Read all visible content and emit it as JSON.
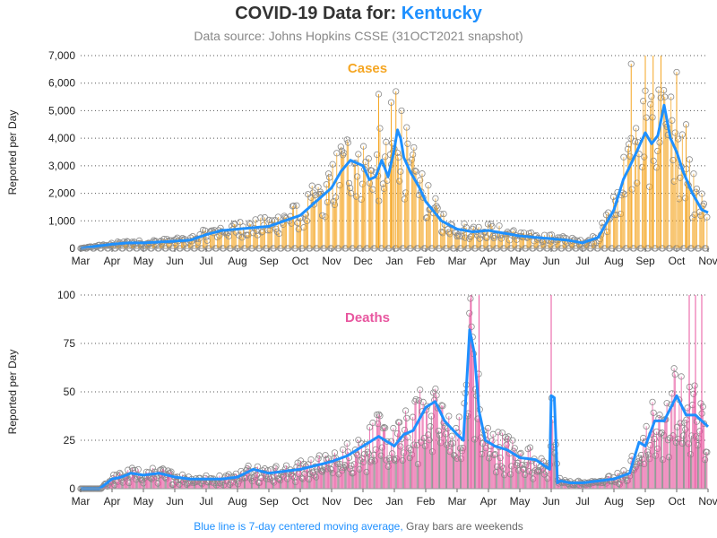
{
  "title_prefix": "COVID-19 Data for:",
  "title_state": "Kentucky",
  "subtitle": "Data source: Johns Hopkins CSSE (31OCT2021 snapshot)",
  "footer_blue": "Blue line is 7-day centered moving average,",
  "footer_gray": "Gray bars are weekends",
  "colors": {
    "cases": "#f5a623",
    "deaths": "#e8569f",
    "average": "#1e90ff",
    "weekend": "#777777",
    "marker": "#8a8a8a"
  },
  "chart_data": [
    {
      "type": "bar",
      "panel_label": "Cases",
      "ylabel": "Reported per Day",
      "ylim": [
        0,
        7000
      ],
      "yticks": [
        "0",
        "1,000",
        "2,000",
        "3,000",
        "4,000",
        "5,000",
        "6,000",
        "7,000"
      ],
      "ytick_values": [
        0,
        1000,
        2000,
        3000,
        4000,
        5000,
        6000,
        7000
      ],
      "xticks": [
        "Mar",
        "Apr",
        "May",
        "Jun",
        "Jul",
        "Aug",
        "Sep",
        "Oct",
        "Nov",
        "Dec",
        "Jan",
        "Feb",
        "Mar",
        "Apr",
        "May",
        "Jun",
        "Jul",
        "Aug",
        "Sep",
        "Oct",
        "Nov"
      ],
      "grid": true,
      "series_desc": "daily bars with circle markers; weekend bars gray; blue 7-day centered moving average",
      "moving_average": {
        "x_month_index": [
          0,
          0.5,
          1,
          1.5,
          2,
          2.5,
          3,
          3.5,
          4,
          4.5,
          5,
          5.5,
          6,
          6.5,
          7,
          7.5,
          8,
          8.3,
          8.6,
          8.8,
          9,
          9.2,
          9.4,
          9.6,
          9.8,
          10,
          10.1,
          10.2,
          10.3,
          10.5,
          10.8,
          11,
          11.5,
          12,
          12.5,
          13,
          13.5,
          14,
          14.5,
          15,
          15.5,
          16,
          16.5,
          17,
          17.3,
          17.6,
          17.8,
          18,
          18.2,
          18.4,
          18.6,
          18.8,
          19,
          19.2,
          19.5,
          19.8,
          20
        ],
        "values": [
          0,
          80,
          150,
          200,
          200,
          230,
          260,
          300,
          500,
          650,
          700,
          750,
          800,
          1000,
          1200,
          1700,
          2200,
          2800,
          3200,
          3100,
          3000,
          2500,
          2600,
          3200,
          2600,
          3600,
          4300,
          4000,
          3300,
          2800,
          2200,
          1700,
          1000,
          700,
          600,
          650,
          550,
          450,
          400,
          350,
          300,
          200,
          400,
          1400,
          2500,
          3200,
          3700,
          4200,
          3800,
          4100,
          5200,
          4000,
          3500,
          2800,
          2000,
          1400,
          1300
        ]
      },
      "spikes": [
        {
          "x": 9.5,
          "y": 5600
        },
        {
          "x": 9.9,
          "y": 5300
        },
        {
          "x": 10.05,
          "y": 5700
        },
        {
          "x": 17.55,
          "y": 6700
        },
        {
          "x": 18.0,
          "y": 7000
        },
        {
          "x": 18.25,
          "y": 7000
        },
        {
          "x": 18.5,
          "y": 7000
        },
        {
          "x": 19.0,
          "y": 6400
        },
        {
          "x": 19.3,
          "y": 4500
        }
      ]
    },
    {
      "type": "bar",
      "panel_label": "Deaths",
      "ylabel": "Reported per Day",
      "ylim": [
        0,
        100
      ],
      "yticks": [
        "0",
        "25",
        "50",
        "75",
        "100"
      ],
      "ytick_values": [
        0,
        25,
        50,
        75,
        100
      ],
      "xticks": [
        "Mar",
        "Apr",
        "May",
        "Jun",
        "Jul",
        "Aug",
        "Sep",
        "Oct",
        "Nov",
        "Dec",
        "Jan",
        "Feb",
        "Mar",
        "Apr",
        "May",
        "Jun",
        "Jul",
        "Aug",
        "Sep",
        "Oct",
        "Nov"
      ],
      "grid": true,
      "series_desc": "daily bars with circle markers; weekend bars gray; blue 7-day centered moving average",
      "moving_average": {
        "x_month_index": [
          0,
          0.6,
          1,
          1.3,
          1.6,
          2,
          2.5,
          3,
          3.5,
          4,
          4.5,
          5,
          5.5,
          6,
          6.5,
          7,
          7.5,
          8,
          8.5,
          9,
          9.5,
          10,
          10.3,
          10.6,
          11,
          11.3,
          11.6,
          12,
          12.2,
          12.4,
          12.55,
          12.7,
          12.9,
          13.2,
          13.6,
          14,
          14.5,
          14.95,
          15.0,
          15.1,
          15.2,
          15.3,
          15.6,
          16,
          16.5,
          17,
          17.5,
          17.8,
          18,
          18.3,
          18.6,
          19,
          19.3,
          19.6,
          19.8,
          20
        ],
        "values": [
          0,
          0,
          5,
          6,
          8,
          7,
          8,
          6,
          5,
          5,
          5,
          6,
          10,
          8,
          9,
          10,
          12,
          14,
          17,
          22,
          27,
          22,
          28,
          30,
          42,
          45,
          35,
          28,
          25,
          82,
          70,
          40,
          25,
          22,
          20,
          16,
          15,
          10,
          48,
          47,
          3,
          4,
          3,
          3,
          4,
          5,
          8,
          24,
          22,
          35,
          35,
          48,
          38,
          38,
          35,
          32
        ]
      },
      "spikes": [
        {
          "x": 12.45,
          "y": 100
        },
        {
          "x": 12.7,
          "y": 100
        },
        {
          "x": 15.0,
          "y": 100
        },
        {
          "x": 19.4,
          "y": 100
        },
        {
          "x": 19.6,
          "y": 100
        },
        {
          "x": 19.8,
          "y": 100
        }
      ]
    }
  ]
}
